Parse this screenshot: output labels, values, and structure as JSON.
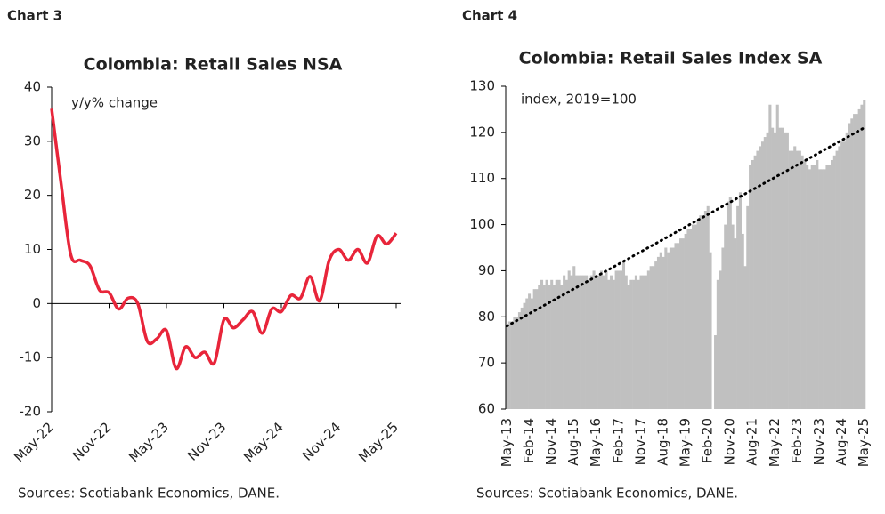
{
  "chart_data": [
    {
      "type": "line",
      "label": "Chart 3",
      "title": "Colombia: Retail Sales NSA",
      "annotation": "y/y% change",
      "source": "Sources: Scotiabank Economics, DANE.",
      "categories": [
        "May-22",
        null,
        null,
        null,
        null,
        null,
        "Nov-22",
        null,
        null,
        null,
        null,
        null,
        "May-23",
        null,
        null,
        null,
        null,
        null,
        "Nov-23",
        null,
        null,
        null,
        null,
        null,
        "May-24",
        null,
        null,
        null,
        null,
        null,
        "Nov-24",
        null,
        null,
        null,
        null,
        null,
        "May-25"
      ],
      "series": [
        {
          "color": "#e8253a",
          "values": [
            36,
            22,
            9,
            8,
            7,
            2.5,
            2,
            -1,
            1,
            0,
            -7,
            -6.5,
            -5,
            -12,
            -8,
            -10,
            -9,
            -11,
            -3,
            -4.5,
            -3,
            -1.5,
            -5.5,
            -1,
            -1.5,
            1.5,
            1,
            5,
            0.5,
            8,
            10,
            8,
            10,
            7.5,
            12.5,
            11,
            13
          ]
        }
      ],
      "ylim": [
        -20,
        40
      ],
      "yticks": [
        -20,
        -10,
        0,
        10,
        20,
        30,
        40
      ]
    },
    {
      "type": "bar",
      "label": "Chart 4",
      "title": "Colombia: Retail Sales Index SA",
      "annotation": "index, 2019=100",
      "source": "Sources: Scotiabank Economics, DANE.",
      "categories": [
        "May-13",
        null,
        null,
        null,
        null,
        null,
        null,
        null,
        null,
        "Feb-14",
        null,
        null,
        null,
        null,
        null,
        null,
        null,
        null,
        "Nov-14",
        null,
        null,
        null,
        null,
        null,
        null,
        null,
        null,
        "Aug-15",
        null,
        null,
        null,
        null,
        null,
        null,
        null,
        null,
        "May-16",
        null,
        null,
        null,
        null,
        null,
        null,
        null,
        null,
        "Feb-17",
        null,
        null,
        null,
        null,
        null,
        null,
        null,
        null,
        "Nov-17",
        null,
        null,
        null,
        null,
        null,
        null,
        null,
        null,
        "Aug-18",
        null,
        null,
        null,
        null,
        null,
        null,
        null,
        null,
        "May-19",
        null,
        null,
        null,
        null,
        null,
        null,
        null,
        null,
        "Feb-20",
        null,
        null,
        null,
        null,
        null,
        null,
        null,
        null,
        "Nov-20",
        null,
        null,
        null,
        null,
        null,
        null,
        null,
        null,
        "Aug-21",
        null,
        null,
        null,
        null,
        null,
        null,
        null,
        null,
        "May-22",
        null,
        null,
        null,
        null,
        null,
        null,
        null,
        null,
        "Feb-23",
        null,
        null,
        null,
        null,
        null,
        null,
        null,
        null,
        "Nov-23",
        null,
        null,
        null,
        null,
        null,
        null,
        null,
        null,
        "Aug-24",
        null,
        null,
        null,
        null,
        null,
        null,
        null,
        null,
        "May-25"
      ],
      "color": "#c0c0c0",
      "values": [
        78,
        79,
        79,
        80,
        80,
        81,
        82,
        83,
        84,
        85,
        84,
        86,
        86,
        87,
        88,
        87,
        88,
        87,
        88,
        87,
        88,
        88,
        87,
        89,
        88,
        90,
        89,
        91,
        89,
        89,
        89,
        89,
        89,
        88,
        89,
        90,
        89,
        89,
        90,
        89,
        90,
        88,
        89,
        88,
        90,
        90,
        90,
        92,
        89,
        87,
        88,
        88,
        89,
        88,
        89,
        89,
        89,
        90,
        91,
        91,
        92,
        93,
        94,
        93,
        95,
        94,
        95,
        95,
        96,
        96,
        97,
        97,
        98,
        99,
        99,
        100,
        100,
        101,
        102,
        102,
        103,
        104,
        94,
        60,
        76,
        88,
        90,
        95,
        100,
        105,
        106,
        100,
        97,
        104,
        107,
        98,
        91,
        104,
        113,
        114,
        115,
        116,
        117,
        118,
        119,
        120,
        126,
        121,
        120,
        126,
        121,
        121,
        120,
        120,
        116,
        116,
        117,
        116,
        116,
        115,
        114,
        113,
        112,
        113,
        113,
        114,
        112,
        112,
        112,
        113,
        113,
        114,
        115,
        116,
        117,
        118,
        118,
        120,
        122,
        123,
        124,
        124,
        125,
        126,
        127
      ],
      "trend": [
        78,
        121
      ],
      "ylim": [
        60,
        130
      ],
      "yticks": [
        60,
        70,
        80,
        90,
        100,
        110,
        120,
        130
      ]
    }
  ]
}
